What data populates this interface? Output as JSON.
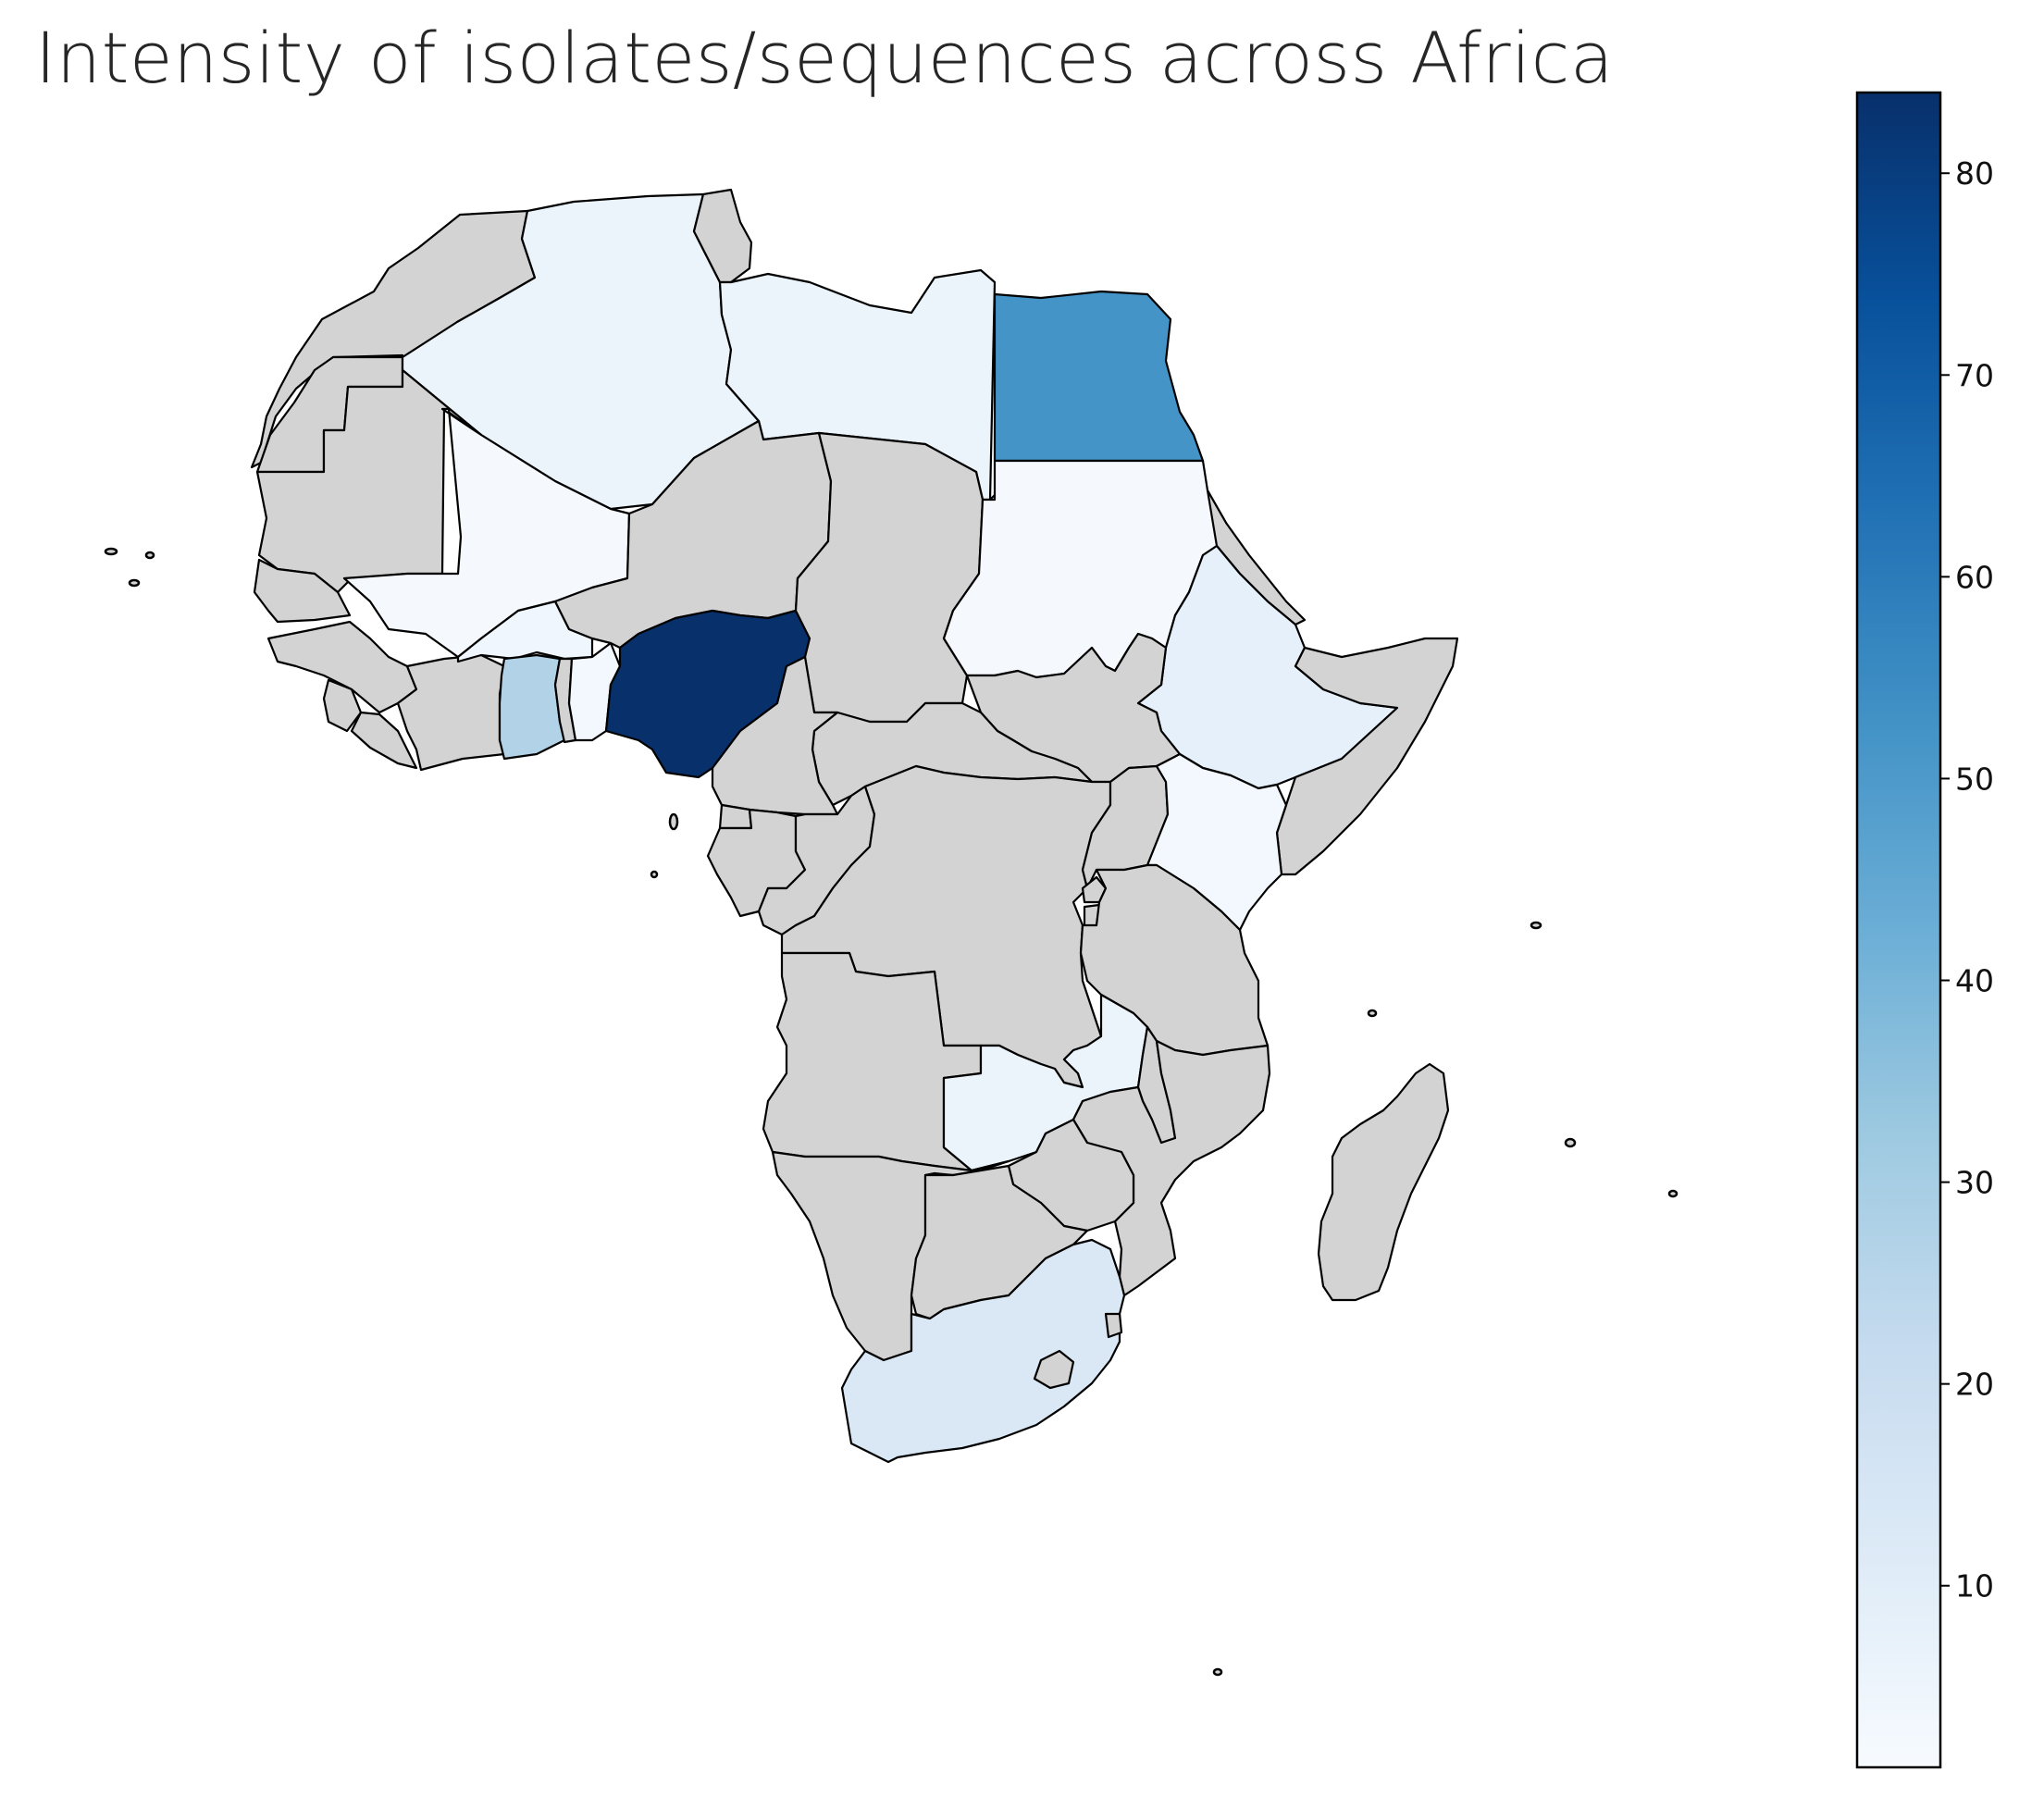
{
  "title": "Intensity of isolates/sequences across Africa",
  "colormap": "Blues",
  "no_data_color": "#d3d3d3",
  "border_color": "#000000",
  "colorbar": {
    "min": 1,
    "max": 84,
    "ticks": [
      10,
      20,
      30,
      40,
      50,
      60,
      70,
      80
    ],
    "tick_labels": [
      "10",
      "20",
      "30",
      "40",
      "50",
      "60",
      "70",
      "80"
    ],
    "stops": [
      "#f7fbff",
      "#deebf7",
      "#c6dbef",
      "#9ecae1",
      "#6baed6",
      "#4292c6",
      "#2171b5",
      "#08519c",
      "#08306b"
    ]
  },
  "countries": [
    {
      "name": "Nigeria",
      "value": 84
    },
    {
      "name": "Egypt",
      "value": 52
    },
    {
      "name": "Ghana",
      "value": 27
    },
    {
      "name": "South Africa",
      "value": 13
    },
    {
      "name": "Ethiopia",
      "value": 8
    },
    {
      "name": "Algeria",
      "value": 6
    },
    {
      "name": "Libya",
      "value": 6
    },
    {
      "name": "Zambia",
      "value": 6
    },
    {
      "name": "Burkina Faso",
      "value": 4
    },
    {
      "name": "Benin",
      "value": 3
    },
    {
      "name": "Kenya",
      "value": 3
    },
    {
      "name": "Mali",
      "value": 2
    },
    {
      "name": "Sudan",
      "value": 2
    }
  ]
}
